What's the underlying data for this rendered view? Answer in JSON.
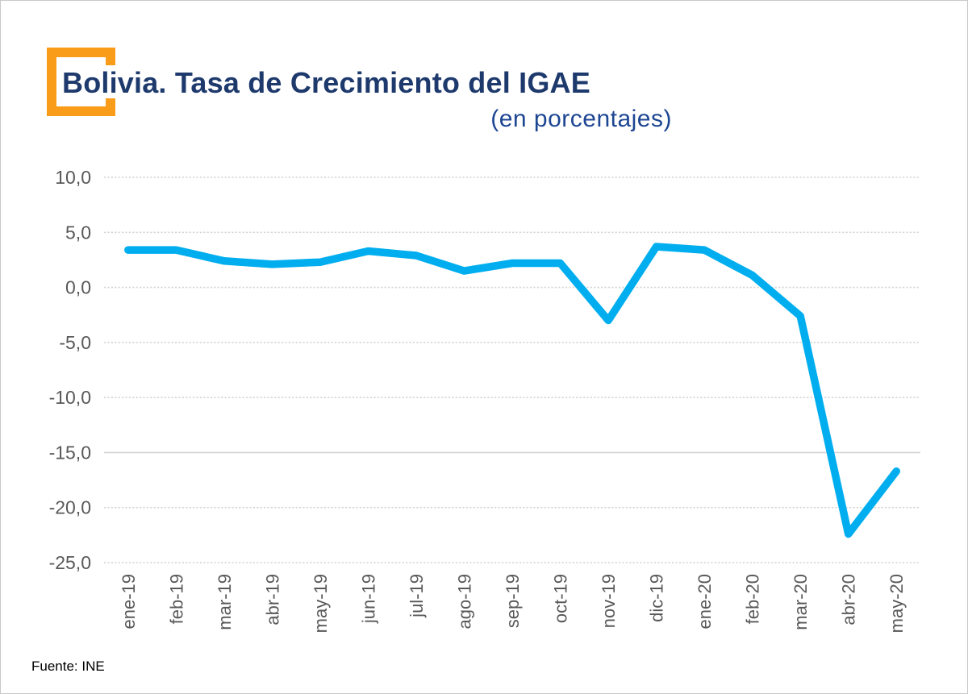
{
  "header": {
    "title": "Bolivia. Tasa de Crecimiento del IGAE",
    "subtitle": "(en porcentajes)"
  },
  "footer": {
    "source": "Fuente: INE"
  },
  "colors": {
    "line": "#00AEEF",
    "title_text": "#1E3A6D",
    "subtitle_text": "#1D4693",
    "accent_orange": "#F89C1A",
    "axis_text": "#595959",
    "gridline": "#D4D4D4"
  },
  "chart_data": {
    "type": "line",
    "title": "Bolivia. Tasa de Crecimiento del IGAE",
    "subtitle": "(en porcentajes)",
    "source": "Fuente: INE",
    "categories": [
      "ene-19",
      "feb-19",
      "mar-19",
      "abr-19",
      "may-19",
      "jun-19",
      "jul-19",
      "ago-19",
      "sep-19",
      "oct-19",
      "nov-19",
      "dic-19",
      "ene-20",
      "feb-20",
      "mar-20",
      "abr-20",
      "may-20"
    ],
    "values": [
      3.4,
      3.4,
      2.4,
      2.1,
      2.3,
      3.3,
      2.9,
      1.5,
      2.2,
      2.2,
      -3.0,
      3.7,
      3.4,
      1.1,
      -2.6,
      -22.4,
      -16.7
    ],
    "ylim": [
      -25,
      10
    ],
    "ytick_step": 5,
    "ytick_labels": [
      "10,0",
      "5,0",
      "0,0",
      "-5,0",
      "-10,0",
      "-15,0",
      "-20,0",
      "-25,0"
    ],
    "xlabel": "",
    "ylabel": "",
    "grid": "horizontal-dashed",
    "legend": "none",
    "x_label_rotation_deg": -90
  }
}
